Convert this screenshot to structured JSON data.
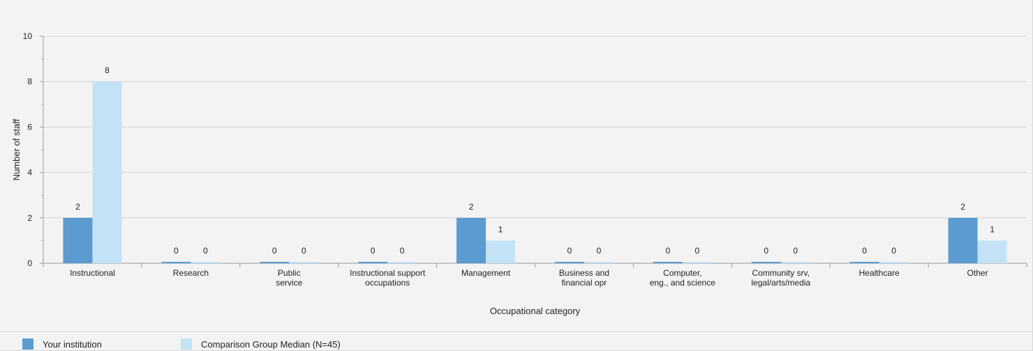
{
  "chart_data": {
    "type": "bar",
    "categories": [
      [
        "Instructional"
      ],
      [
        "Research"
      ],
      [
        "Public",
        "service"
      ],
      [
        "Instructional support",
        "occupations"
      ],
      [
        "Management"
      ],
      [
        "Business and",
        "financial opr"
      ],
      [
        "Computer,",
        "eng., and science"
      ],
      [
        "Community srv,",
        "legal/arts/media"
      ],
      [
        "Healthcare"
      ],
      [
        "Other"
      ]
    ],
    "series": [
      {
        "name": "Your institution",
        "color": "#5b9bd1",
        "values": [
          2,
          0,
          0,
          0,
          2,
          0,
          0,
          0,
          0,
          2
        ]
      },
      {
        "name": "Comparison Group Median (N=45)",
        "color": "#c4e2f5",
        "values": [
          8,
          0,
          0,
          0,
          1,
          0,
          0,
          0,
          0,
          1
        ]
      }
    ],
    "xlabel": "Occupational category",
    "ylabel": "Number of staff",
    "ylim": [
      0,
      10
    ],
    "yticks": [
      0,
      2,
      4,
      6,
      8,
      10
    ],
    "grid": true,
    "legend_position": "bottom"
  }
}
